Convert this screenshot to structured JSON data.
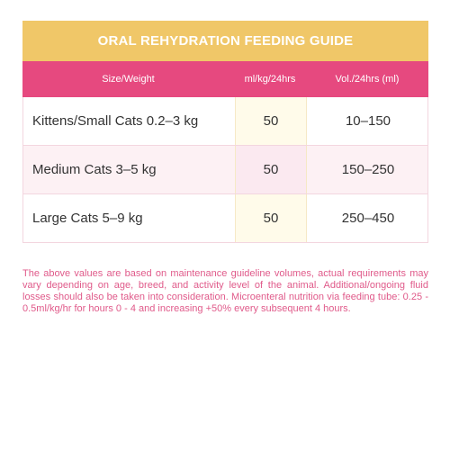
{
  "guide": {
    "title": "ORAL REHYDRATION FEEDING GUIDE",
    "headers": {
      "size": "Size/Weight",
      "rate": "ml/kg/24hrs",
      "volume": "Vol./24hrs (ml)"
    },
    "rows": [
      {
        "size": "Kittens/Small Cats 0.2–3 kg",
        "rate": "50",
        "volume": "10–150"
      },
      {
        "size": "Medium Cats 3–5 kg",
        "rate": "50",
        "volume": "150–250"
      },
      {
        "size": "Large Cats 5–9 kg",
        "rate": "50",
        "volume": "250–450"
      }
    ],
    "note": "The above values are based on maintenance guideline volumes, actual requirements may vary depending on age, breed, and activity level of the animal. Additional/ongoing fluid losses should also be taken into consideration. Microenteral nutrition via feeding tube: 0.25 - 0.5ml/kg/hr for hours 0 - 4 and increasing +50% every subsequent 4 hours."
  },
  "colors": {
    "title_bg": "#f0c768",
    "header_bg": "#e6497f",
    "note_text": "#e05a8a"
  }
}
